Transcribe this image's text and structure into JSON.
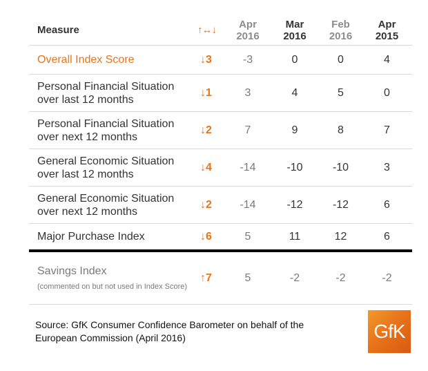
{
  "header": {
    "measure": "Measure",
    "trend": "↑↔↓",
    "columns": [
      {
        "line1": "Apr",
        "line2": "2016"
      },
      {
        "line1": "Mar",
        "line2": "2016"
      },
      {
        "line1": "Feb",
        "line2": "2016"
      },
      {
        "line1": "Apr",
        "line2": "2015"
      }
    ]
  },
  "rows": [
    {
      "measure": "Overall Index Score",
      "trend": "↓3",
      "values": [
        "-3",
        "0",
        "0",
        "4"
      ]
    },
    {
      "measure": "Personal Financial Situation over last 12 months",
      "trend": "↓1",
      "values": [
        "3",
        "4",
        "5",
        "0"
      ]
    },
    {
      "measure": "Personal Financial Situation over next 12 months",
      "trend": "↓2",
      "values": [
        "7",
        "9",
        "8",
        "7"
      ]
    },
    {
      "measure": "General Economic Situation over last 12 months",
      "trend": "↓4",
      "values": [
        "-14",
        "-10",
        "-10",
        "3"
      ]
    },
    {
      "measure": "General Economic Situation over next 12 months",
      "trend": "↓2",
      "values": [
        "-14",
        "-12",
        "-12",
        "6"
      ]
    },
    {
      "measure": "Major Purchase Index",
      "trend": "↓6",
      "values": [
        "5",
        "11",
        "12",
        "6"
      ]
    },
    {
      "measure": "Savings Index",
      "note": "(commented on but not used in Index Score)",
      "trend": "↑7",
      "values": [
        "5",
        "-2",
        "-2",
        "-2"
      ]
    }
  ],
  "source": "Source: GfK Consumer Confidence Barometer on behalf of the European Commission (April 2016)",
  "logo": "GfK",
  "colors": {
    "accent": "#e8741a",
    "rule": "#d9d9d9"
  }
}
